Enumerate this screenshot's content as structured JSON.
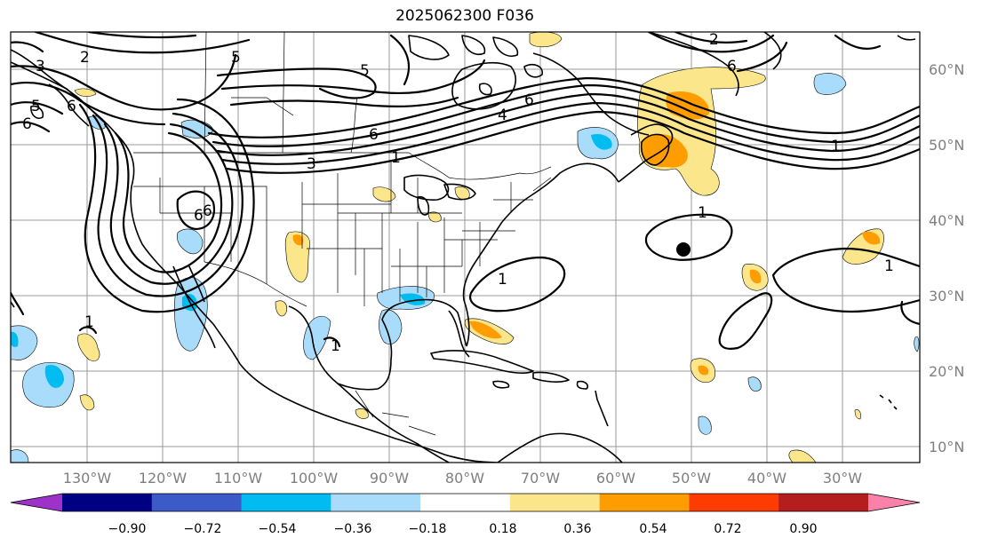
{
  "title": "2025062300 F036",
  "lat_labels": [
    "60°N",
    "50°N",
    "40°N",
    "30°N",
    "20°N",
    "10°N"
  ],
  "lon_labels": [
    "130°W",
    "120°W",
    "110°W",
    "100°W",
    "90°W",
    "80°W",
    "70°W",
    "60°W",
    "50°W",
    "40°W",
    "30°W"
  ],
  "colorbar": {
    "colors": [
      "#9c32c8",
      "#000082",
      "#3c5ac8",
      "#00bcf0",
      "#a8dcfa",
      "#ffffff",
      "#fce68c",
      "#ff9c00",
      "#ff3c00",
      "#b41e1e",
      "#fa82aa"
    ],
    "ticks": [
      "−0.90",
      "−0.72",
      "−0.54",
      "−0.36",
      "−0.18",
      "0.18",
      "0.36",
      "0.54",
      "0.72",
      "0.90"
    ]
  },
  "contour_labels": [
    "2",
    "3",
    "5",
    "6",
    "5",
    "6",
    "6",
    "1",
    "2",
    "6",
    "4",
    "5",
    "6",
    "6",
    "1",
    "1",
    "1",
    "1",
    "1",
    "1",
    "6",
    "3"
  ],
  "colors": {
    "land": "#000000",
    "grid": "#9a9a9a",
    "contour": "#000000",
    "positive_fill": "#fce68c",
    "negative_fill": "#a8dcfa"
  }
}
